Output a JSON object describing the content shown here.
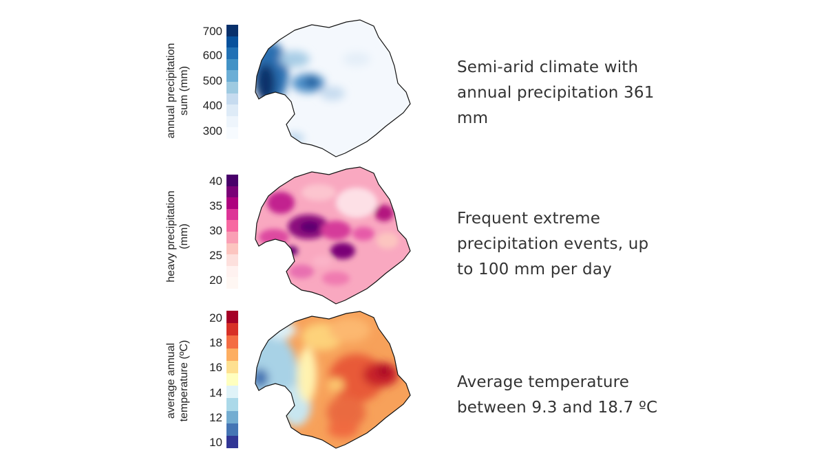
{
  "panels": [
    {
      "ylabel_line1": "annual precipitation",
      "ylabel_line2": "sum (mm)",
      "ticks": [
        "700",
        "600",
        "500",
        "400",
        "300"
      ],
      "colors": [
        "#08306b",
        "#08519c",
        "#2171b5",
        "#4292c6",
        "#6baed6",
        "#9ecae1",
        "#c6dbef",
        "#deebf7",
        "#eef5fc",
        "#f7fbff"
      ],
      "description": [
        "Semi-arid climate with",
        "annual precipitation 361",
        "mm"
      ]
    },
    {
      "ylabel_line1": "heavy precipitation",
      "ylabel_line2": "(mm)",
      "ticks": [
        "40",
        "35",
        "30",
        "25",
        "20"
      ],
      "colors": [
        "#49006a",
        "#7a0177",
        "#ae017e",
        "#dd3497",
        "#f768a1",
        "#fa9fb5",
        "#fcc5c0",
        "#fde0dd",
        "#fff2f0",
        "#fff7f3"
      ],
      "description": [
        "Frequent extreme",
        "precipitation events, up",
        "to 100 mm per day"
      ]
    },
    {
      "ylabel_line1": "average annual",
      "ylabel_line2": "temperature (ºC)",
      "ticks": [
        "20",
        "18",
        "16",
        "14",
        "12",
        "10"
      ],
      "colors": [
        "#a50026",
        "#d73027",
        "#f46d43",
        "#fdae61",
        "#fee090",
        "#ffffbf",
        "#e0f3f8",
        "#abd9e9",
        "#74add1",
        "#4575b4",
        "#313695"
      ],
      "description": [
        "Average temperature",
        "between 9.3 and 18.7 ºC"
      ]
    }
  ]
}
